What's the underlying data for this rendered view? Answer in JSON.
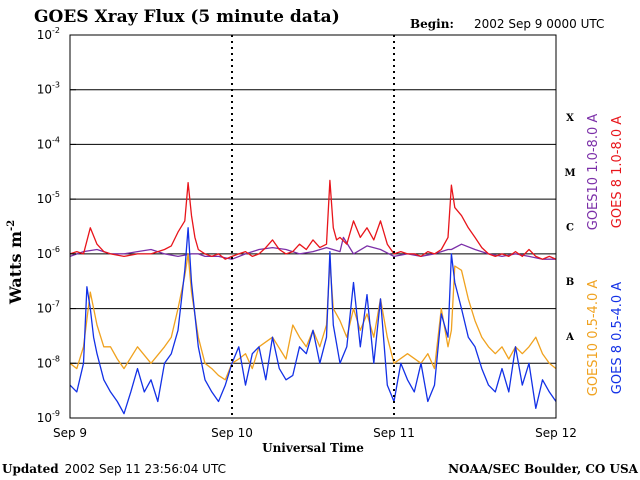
{
  "chart_data": {
    "type": "line",
    "title": "GOES Xray Flux (5 minute data)",
    "begin_label": "Begin:",
    "begin_value": "2002 Sep 9 0000 UTC",
    "xlabel": "Universal Time",
    "ylabel": "Watts m",
    "ylabel_exp": "-2",
    "y_scale": "log",
    "ylim": [
      1e-09,
      0.01
    ],
    "y_ticks": [
      {
        "base": "10",
        "exp": "-2"
      },
      {
        "base": "10",
        "exp": "-3"
      },
      {
        "base": "10",
        "exp": "-4"
      },
      {
        "base": "10",
        "exp": "-5"
      },
      {
        "base": "10",
        "exp": "-6"
      },
      {
        "base": "10",
        "exp": "-7"
      },
      {
        "base": "10",
        "exp": "-8"
      },
      {
        "base": "10",
        "exp": "-9"
      }
    ],
    "x_ticks": [
      "Sep 9",
      "Sep 10",
      "Sep 11",
      "Sep 12"
    ],
    "xlim_hours": [
      0,
      72
    ],
    "flare_classes": [
      "X",
      "M",
      "C",
      "B",
      "A"
    ],
    "footer_left_label": "Updated",
    "footer_left_value": "2002 Sep 11 23:56:04 UTC",
    "footer_right": "NOAA/SEC Boulder, CO USA",
    "series": [
      {
        "name": "GOES10 1.0-8.0 A",
        "color": "#7b2fa8",
        "x": [
          0,
          2,
          4,
          6,
          8,
          10,
          12,
          14,
          16,
          18,
          19,
          20,
          22,
          24,
          26,
          28,
          30,
          32,
          34,
          36,
          38,
          40,
          40.5,
          42,
          44,
          46,
          48,
          50,
          52,
          54,
          56,
          56.5,
          58,
          60,
          62,
          64,
          66,
          68,
          70,
          72
        ],
        "y": [
          9e-07,
          1.1e-06,
          1.2e-06,
          1e-06,
          1e-06,
          1.1e-06,
          1.2e-06,
          1e-06,
          9e-07,
          1e-06,
          1e-06,
          9e-07,
          9e-07,
          8e-07,
          1e-06,
          1.2e-06,
          1.3e-06,
          1.2e-06,
          1e-06,
          1.1e-06,
          1.3e-06,
          1.1e-06,
          2e-06,
          1e-06,
          1.4e-06,
          1.2e-06,
          9e-07,
          1e-06,
          9e-07,
          1e-06,
          1.2e-06,
          1.2e-06,
          1.5e-06,
          1.2e-06,
          1e-06,
          9e-07,
          1e-06,
          9e-07,
          8e-07,
          8e-07
        ]
      },
      {
        "name": "GOES 8 1.0-8.0 A",
        "color": "#e8151b",
        "x": [
          0,
          1,
          2,
          3,
          4,
          5,
          6,
          8,
          10,
          12,
          14,
          15,
          16,
          17,
          17.5,
          18,
          18.5,
          19,
          20,
          21,
          22,
          23,
          24,
          25,
          26,
          27,
          28,
          29,
          30,
          31,
          32,
          33,
          34,
          35,
          36,
          37,
          38,
          38.5,
          39,
          39.5,
          40,
          41,
          42,
          43,
          44,
          45,
          46,
          47,
          48,
          49,
          50,
          51,
          52,
          53,
          54,
          55,
          56,
          56.5,
          57,
          58,
          59,
          60,
          61,
          62,
          63,
          64,
          65,
          66,
          67,
          68,
          69,
          70,
          71,
          72
        ],
        "y": [
          1e-06,
          1.1e-06,
          1e-06,
          3e-06,
          1.5e-06,
          1.1e-06,
          1e-06,
          9e-07,
          1e-06,
          1e-06,
          1.2e-06,
          1.4e-06,
          2.5e-06,
          4e-06,
          2e-05,
          5e-06,
          2e-06,
          1.2e-06,
          1e-06,
          9e-07,
          1e-06,
          8e-07,
          9e-07,
          1e-06,
          1.1e-06,
          9e-07,
          1e-06,
          1.3e-06,
          1.8e-06,
          1.2e-06,
          1e-06,
          1.1e-06,
          1.5e-06,
          1.2e-06,
          1.8e-06,
          1.3e-06,
          1.5e-06,
          2.2e-05,
          3e-06,
          1.8e-06,
          2e-06,
          1.5e-06,
          4e-06,
          2e-06,
          3e-06,
          1.8e-06,
          4e-06,
          1.5e-06,
          1e-06,
          1.1e-06,
          1e-06,
          1e-06,
          9e-07,
          1.1e-06,
          1e-06,
          1.2e-06,
          2e-06,
          1.8e-05,
          7e-06,
          5e-06,
          3e-06,
          2e-06,
          1.3e-06,
          1e-06,
          9e-07,
          1e-06,
          9e-07,
          1.1e-06,
          9e-07,
          1.2e-06,
          9e-07,
          8e-07,
          9e-07,
          8e-07
        ]
      },
      {
        "name": "GOES10 0.5-4.0 A",
        "color": "#f0a21f",
        "x": [
          0,
          1,
          2,
          3,
          4,
          5,
          6,
          7,
          8,
          10,
          12,
          14,
          15,
          16,
          17,
          17.5,
          18,
          19,
          20,
          21,
          22,
          23,
          24,
          25,
          26,
          27,
          28,
          30,
          32,
          33,
          34,
          35,
          36,
          37,
          38,
          38.5,
          39,
          40,
          41,
          42,
          43,
          44,
          45,
          46,
          47,
          48,
          50,
          52,
          53,
          54,
          55,
          56,
          56.5,
          57,
          58,
          59,
          60,
          61,
          62,
          63,
          64,
          65,
          66,
          67,
          68,
          69,
          70,
          71,
          72
        ],
        "y": [
          1e-08,
          8e-09,
          2e-08,
          2e-07,
          5e-08,
          2e-08,
          2e-08,
          1.2e-08,
          8e-09,
          2e-08,
          1e-08,
          2e-08,
          3e-08,
          1e-07,
          4e-07,
          1e-06,
          2e-07,
          3e-08,
          1e-08,
          8e-09,
          6e-09,
          5e-09,
          1e-08,
          1.2e-08,
          1.5e-08,
          8e-09,
          2e-08,
          3e-08,
          1.2e-08,
          5e-08,
          3e-08,
          2e-08,
          4e-08,
          2e-08,
          5e-08,
          7e-07,
          1e-07,
          6e-08,
          3e-08,
          1e-07,
          4e-08,
          8e-08,
          3e-08,
          1.5e-07,
          3e-08,
          1e-08,
          1.5e-08,
          1e-08,
          1.5e-08,
          8e-09,
          1e-07,
          2e-08,
          4e-08,
          6e-07,
          5e-07,
          1.5e-07,
          6e-08,
          3e-08,
          2e-08,
          1.5e-08,
          2e-08,
          1.2e-08,
          2e-08,
          1.5e-08,
          2e-08,
          3e-08,
          1.5e-08,
          1e-08,
          8e-09
        ]
      },
      {
        "name": "GOES 8 0.5-4.0 A",
        "color": "#1331e6",
        "x": [
          0,
          1,
          2,
          2.5,
          3,
          3.5,
          4,
          5,
          6,
          7,
          8,
          9,
          10,
          11,
          12,
          13,
          14,
          15,
          16,
          17,
          17.5,
          18,
          19,
          20,
          21,
          22,
          23,
          24,
          25,
          26,
          27,
          28,
          29,
          30,
          31,
          32,
          33,
          34,
          35,
          36,
          37,
          38,
          38.5,
          39,
          40,
          41,
          42,
          43,
          44,
          45,
          46,
          47,
          48,
          49,
          50,
          51,
          52,
          53,
          54,
          55,
          56,
          56.5,
          57,
          58,
          59,
          60,
          61,
          62,
          63,
          64,
          65,
          66,
          67,
          68,
          69,
          70,
          71,
          72
        ],
        "y": [
          4e-09,
          3e-09,
          1e-08,
          2.5e-07,
          1e-07,
          3e-08,
          1.5e-08,
          5e-09,
          3e-09,
          2e-09,
          1.2e-09,
          3e-09,
          8e-09,
          3e-09,
          5e-09,
          2e-09,
          1e-08,
          1.5e-08,
          4e-08,
          5e-07,
          3e-06,
          3e-07,
          2e-08,
          5e-09,
          3e-09,
          2e-09,
          4e-09,
          1e-08,
          2e-08,
          4e-09,
          1.5e-08,
          2e-08,
          5e-09,
          3e-08,
          8e-09,
          5e-09,
          6e-09,
          2e-08,
          1.5e-08,
          4e-08,
          1e-08,
          3e-08,
          1.1e-06,
          5e-08,
          1e-08,
          2e-08,
          3e-07,
          2e-08,
          1.8e-07,
          1e-08,
          1.5e-07,
          4e-09,
          2e-09,
          1e-08,
          5e-09,
          3e-09,
          1e-08,
          2e-09,
          4e-09,
          8e-08,
          3e-08,
          1e-06,
          3e-07,
          1e-07,
          3e-08,
          2e-08,
          8e-09,
          4e-09,
          3e-09,
          8e-09,
          3e-09,
          2e-08,
          4e-09,
          1e-08,
          1.5e-09,
          5e-09,
          3e-09,
          2e-09
        ]
      }
    ]
  }
}
